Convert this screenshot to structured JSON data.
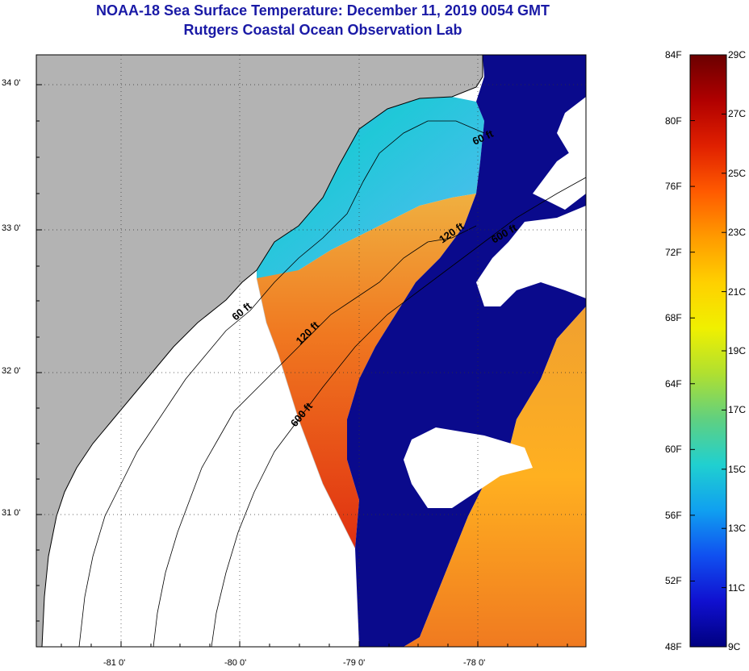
{
  "title": "NOAA-18 Sea Surface Temperature:  December 11, 2019 0054 GMT",
  "subtitle": "Rutgers Coastal Ocean Observation Lab",
  "map": {
    "lat_labels": [
      "34 0'",
      "33 0'",
      "32 0'",
      "31 0'"
    ],
    "lon_labels": [
      "-81 0'",
      "-80 0'",
      "-79 0'",
      "-78 0'"
    ],
    "lat_range": [
      30.15,
      34.2
    ],
    "lon_range": [
      -81.65,
      -77.15
    ],
    "isobath_labels": [
      "60 ft",
      "120 ft",
      "600 ft",
      "60 ft",
      "120 ft",
      "600 ft"
    ],
    "colors": {
      "land": "#b3b3b3",
      "cloud": "#ffffff",
      "cold_water": "#0a0a8c",
      "coastline": "#000000"
    }
  },
  "colorbar": {
    "fahrenheit_labels": [
      "84F",
      "80F",
      "76F",
      "72F",
      "68F",
      "64F",
      "60F",
      "56F",
      "52F",
      "48F"
    ],
    "celsius_labels": [
      "29C",
      "27C",
      "25C",
      "23C",
      "21C",
      "19C",
      "17C",
      "15C",
      "13C",
      "11C",
      "9C"
    ],
    "range_c": [
      9,
      29
    ],
    "stops": [
      "#6b0000",
      "#b00000",
      "#e02000",
      "#ff5a00",
      "#ff9a00",
      "#ffd000",
      "#f0f000",
      "#b0e030",
      "#60d080",
      "#20d0d0",
      "#10a0f0",
      "#1050f0",
      "#1010d0",
      "#000080"
    ]
  }
}
